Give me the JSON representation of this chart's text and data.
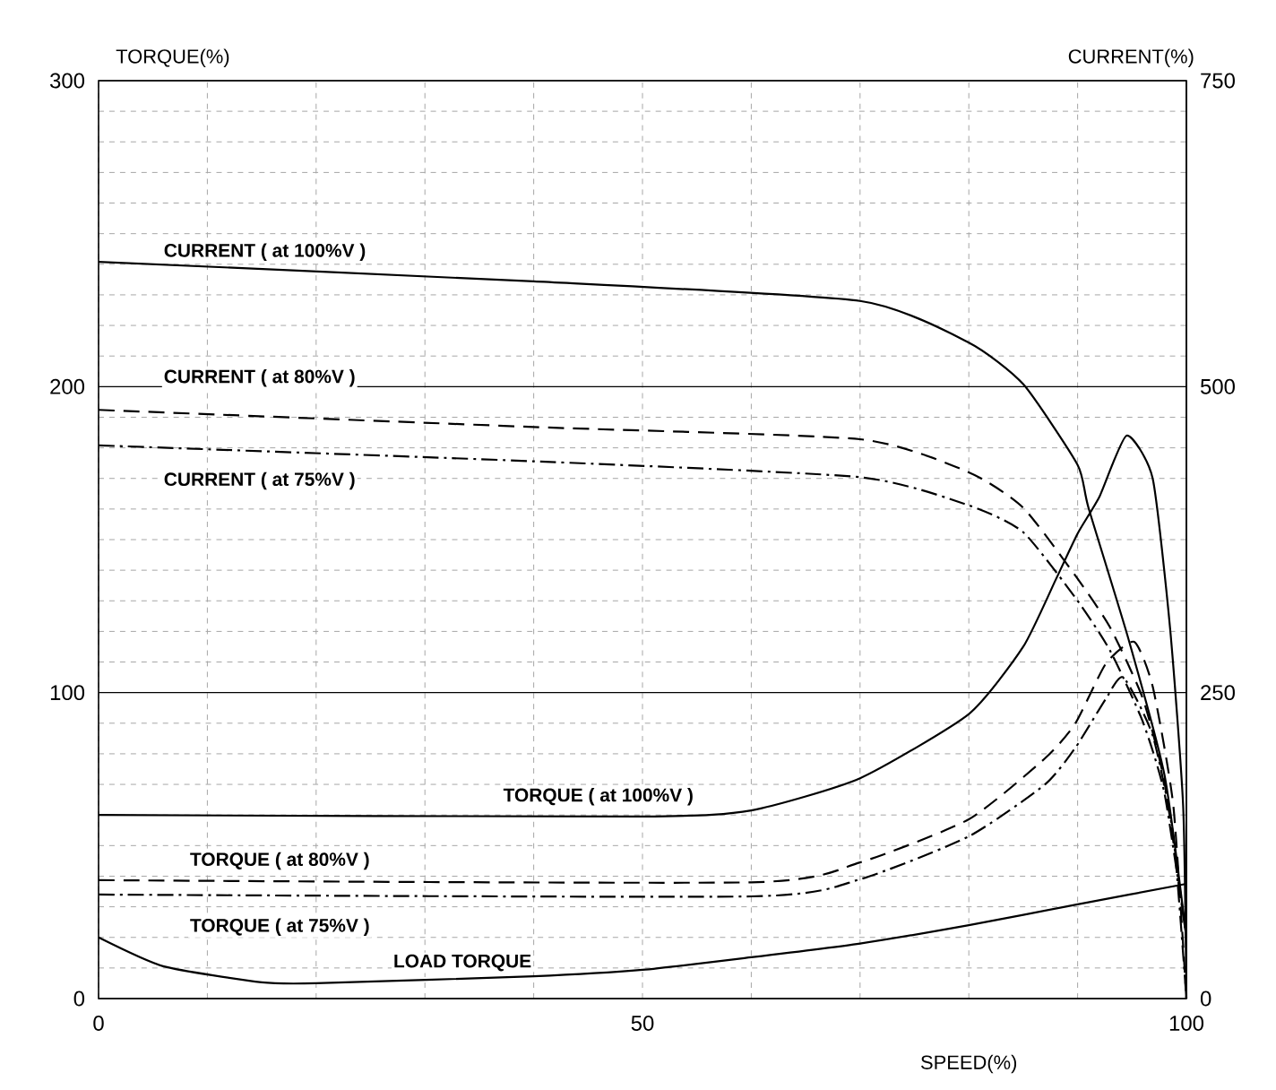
{
  "chart_data": {
    "type": "line",
    "ylabel": "TORQUE(%)",
    "y2label": "CURRENT(%)",
    "xlabel": "SPEED(%)",
    "xlim": [
      0,
      100
    ],
    "ylim": [
      0,
      300
    ],
    "y2lim": [
      0,
      750
    ],
    "xticks": [
      0,
      {
        "value": 10,
        "label": null
      },
      {
        "value": 20,
        "label": null
      },
      {
        "value": 30,
        "label": null
      },
      {
        "value": 40,
        "label": null
      },
      50,
      {
        "value": 60,
        "label": null
      },
      {
        "value": 70,
        "label": null
      },
      {
        "value": 80,
        "label": null
      },
      {
        "value": 90,
        "label": null
      },
      100
    ],
    "yticks": [
      0,
      {
        "value": 10,
        "label": null
      },
      {
        "value": 20,
        "label": null
      },
      {
        "value": 30,
        "label": null
      },
      {
        "value": 40,
        "label": null
      },
      {
        "value": 50,
        "label": null
      },
      {
        "value": 60,
        "label": null
      },
      {
        "value": 70,
        "label": null
      },
      {
        "value": 80,
        "label": null
      },
      {
        "value": 90,
        "label": null
      },
      100,
      {
        "value": 110,
        "label": null
      },
      {
        "value": 120,
        "label": null
      },
      {
        "value": 130,
        "label": null
      },
      {
        "value": 140,
        "label": null
      },
      {
        "value": 150,
        "label": null
      },
      {
        "value": 160,
        "label": null
      },
      {
        "value": 170,
        "label": null
      },
      {
        "value": 180,
        "label": null
      },
      {
        "value": 190,
        "label": null
      },
      200,
      {
        "value": 210,
        "label": null
      },
      {
        "value": 220,
        "label": null
      },
      {
        "value": 230,
        "label": null
      },
      {
        "value": 240,
        "label": null
      },
      {
        "value": 250,
        "label": null
      },
      {
        "value": 260,
        "label": null
      },
      {
        "value": 270,
        "label": null
      },
      {
        "value": 280,
        "label": null
      },
      {
        "value": 290,
        "label": null
      },
      300
    ],
    "y2ticks": [
      0,
      250,
      500,
      750
    ],
    "grid": true,
    "series": [
      {
        "name": "CURRENT ( at 100%V )",
        "color": "#000000",
        "line_style": "solid",
        "axis": "y2",
        "x": [
          0,
          40,
          70,
          80,
          85,
          90,
          91,
          94.7,
          98,
          100
        ],
        "values": [
          602,
          586,
          570,
          536,
          502,
          436,
          401,
          293,
          182,
          50
        ]
      },
      {
        "name": "CURRENT ( at 80%V )",
        "color": "#000000",
        "line_style": "dashed",
        "axis": "y2",
        "x": [
          0,
          40,
          70,
          80,
          85,
          90,
          93,
          96,
          98,
          100
        ],
        "values": [
          481,
          467,
          457,
          430,
          401,
          343,
          303,
          245,
          176,
          50
        ]
      },
      {
        "name": "CURRENT ( at 75%V )",
        "color": "#000000",
        "line_style": "dashdot",
        "axis": "y2",
        "x": [
          0,
          40,
          70,
          80,
          85,
          90,
          93,
          96,
          98,
          100
        ],
        "values": [
          452,
          439,
          426,
          403,
          381,
          325,
          284,
          226,
          167,
          50
        ]
      },
      {
        "name": "TORQUE ( at 100%V )",
        "color": "#000000",
        "line_style": "solid",
        "x": [
          0,
          50,
          60,
          70,
          80,
          85,
          88,
          90,
          92,
          94.5,
          96.9,
          98.5,
          99.7,
          100
        ],
        "values": [
          60,
          59.5,
          61.5,
          72,
          93,
          115,
          137,
          152,
          164,
          184,
          170,
          121,
          63,
          0
        ]
      },
      {
        "name": "TORQUE ( at 80%V )",
        "color": "#000000",
        "line_style": "dashed",
        "x": [
          0,
          60,
          70,
          80,
          87,
          89.8,
          92.6,
          95.2,
          96.9,
          98.8,
          100
        ],
        "values": [
          38.7,
          38,
          44.5,
          58.6,
          78.5,
          90,
          109.5,
          116.6,
          102,
          63,
          0
        ]
      },
      {
        "name": "TORQUE ( at 75%V )",
        "color": "#000000",
        "line_style": "dashdot",
        "x": [
          0,
          60,
          70,
          80,
          87,
          89.8,
          92.6,
          94.2,
          96.9,
          98.8,
          100
        ],
        "values": [
          34,
          33.4,
          39,
          53,
          70,
          82,
          98,
          105,
          86,
          53,
          0
        ]
      },
      {
        "name": "LOAD TORQUE",
        "color": "#000000",
        "line_style": "solid",
        "x": [
          0,
          6,
          15,
          20,
          40,
          50,
          60,
          70,
          80,
          90,
          100
        ],
        "values": [
          20,
          10.5,
          5.3,
          5,
          7.3,
          9.4,
          13.5,
          18,
          24,
          30.8,
          37.5
        ]
      }
    ]
  }
}
